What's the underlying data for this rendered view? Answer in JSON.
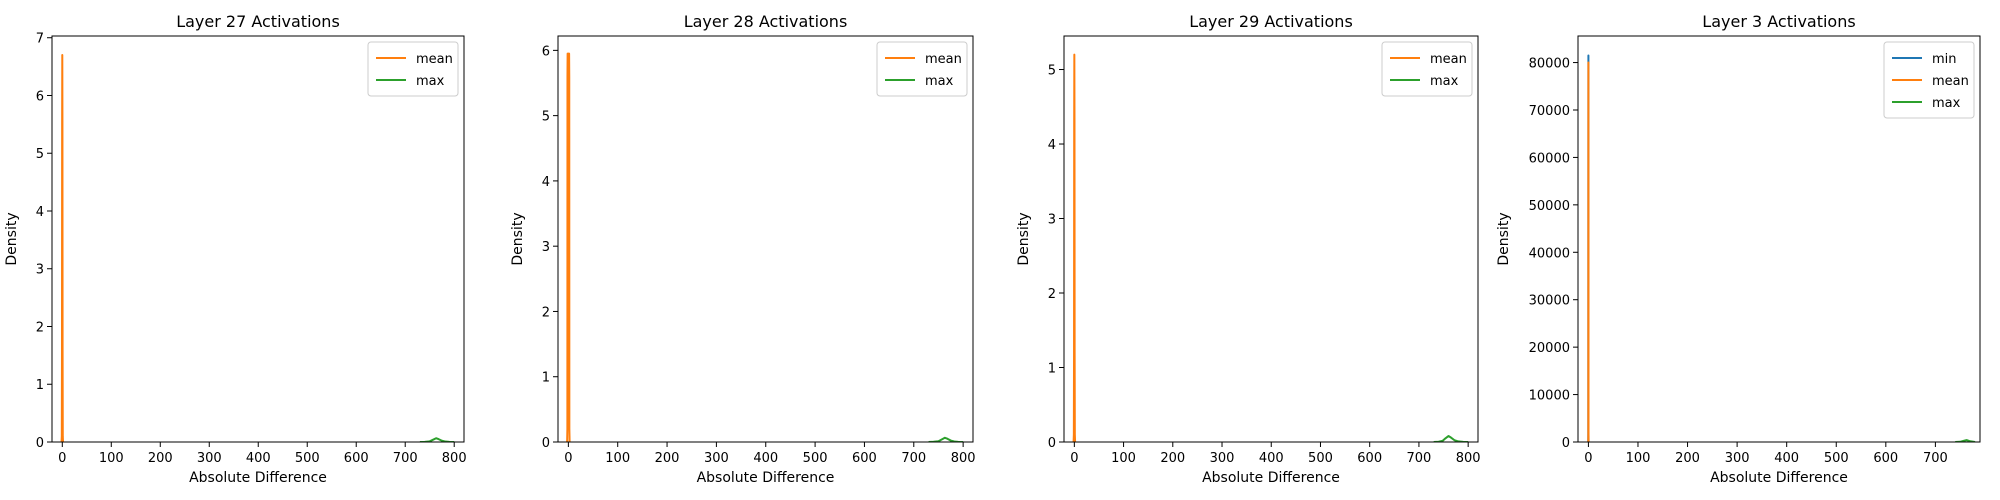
{
  "figure": {
    "background": "#ffffff",
    "layout": "1 row x 4 columns"
  },
  "chart_data": [
    {
      "type": "line",
      "title": "Layer 27 Activations",
      "xlabel": "Absolute Difference",
      "ylabel": "Density",
      "xlim": [
        -21,
        820
      ],
      "ylim": [
        0,
        7.03
      ],
      "xticks": [
        0,
        100,
        200,
        300,
        400,
        500,
        600,
        700,
        800
      ],
      "yticks": [
        0,
        1,
        2,
        3,
        4,
        5,
        6,
        7
      ],
      "grid": false,
      "legend_position": "top-right",
      "series": [
        {
          "name": "mean",
          "color": "#ff7f0e",
          "x": [
            -1.5,
            -1,
            -0.6,
            -0.3,
            0,
            0.3,
            0.6,
            1,
            1.5
          ],
          "y": [
            0,
            0.1,
            1.6,
            5.5,
            6.7,
            5.5,
            1.6,
            0.1,
            0
          ]
        },
        {
          "name": "max",
          "color": "#2ca02c",
          "x": [
            730,
            740,
            750,
            757,
            763,
            768,
            775,
            782,
            790,
            800
          ],
          "y": [
            0,
            0.003,
            0.012,
            0.04,
            0.065,
            0.05,
            0.022,
            0.008,
            0.002,
            0
          ]
        }
      ]
    },
    {
      "type": "line",
      "title": "Layer 28 Activations",
      "xlabel": "Absolute Difference",
      "ylabel": "Density",
      "xlim": [
        -21,
        820
      ],
      "ylim": [
        0,
        6.22
      ],
      "xticks": [
        0,
        100,
        200,
        300,
        400,
        500,
        600,
        700,
        800
      ],
      "yticks": [
        0,
        1,
        2,
        3,
        4,
        5,
        6
      ],
      "grid": false,
      "legend_position": "top-right",
      "series": [
        {
          "name": "mean",
          "color": "#ff7f0e",
          "x": [
            -2.5,
            -2,
            -1.8,
            -1.5,
            0,
            1.5,
            1.8,
            2,
            2.5
          ],
          "y": [
            0,
            0.2,
            5.6,
            5.95,
            5.95,
            5.95,
            5.6,
            0.2,
            0
          ]
        },
        {
          "name": "max",
          "color": "#2ca02c",
          "x": [
            730,
            740,
            750,
            757,
            763,
            768,
            775,
            782,
            790,
            800
          ],
          "y": [
            0,
            0.003,
            0.012,
            0.04,
            0.065,
            0.05,
            0.022,
            0.008,
            0.002,
            0
          ]
        }
      ]
    },
    {
      "type": "line",
      "title": "Layer 29 Activations",
      "xlabel": "Absolute Difference",
      "ylabel": "Density",
      "xlim": [
        -21,
        820
      ],
      "ylim": [
        0,
        5.45
      ],
      "xticks": [
        0,
        100,
        200,
        300,
        400,
        500,
        600,
        700,
        800
      ],
      "yticks": [
        0,
        1,
        2,
        3,
        4,
        5
      ],
      "grid": false,
      "legend_position": "top-right",
      "series": [
        {
          "name": "mean",
          "color": "#ff7f0e",
          "x": [
            -1.5,
            -1,
            -0.6,
            -0.3,
            0,
            0.3,
            0.6,
            1,
            1.5
          ],
          "y": [
            0,
            0.1,
            1.2,
            4.3,
            5.2,
            4.3,
            1.2,
            0.1,
            0
          ]
        },
        {
          "name": "max",
          "color": "#2ca02c",
          "x": [
            730,
            740,
            748,
            754,
            760,
            765,
            772,
            780,
            790,
            800
          ],
          "y": [
            0,
            0.003,
            0.015,
            0.05,
            0.08,
            0.06,
            0.025,
            0.008,
            0.002,
            0
          ]
        }
      ]
    },
    {
      "type": "line",
      "title": "Layer 3 Activations",
      "xlabel": "Absolute Difference",
      "ylabel": "Density",
      "xlim": [
        -21,
        790
      ],
      "ylim": [
        0,
        85600
      ],
      "xticks": [
        0,
        100,
        200,
        300,
        400,
        500,
        600,
        700
      ],
      "yticks": [
        0,
        10000,
        20000,
        30000,
        40000,
        50000,
        60000,
        70000,
        80000
      ],
      "grid": false,
      "legend_position": "top-right",
      "series": [
        {
          "name": "min",
          "color": "#1f77b4",
          "x": [
            -0.3,
            -0.2,
            -0.1,
            0,
            0.1,
            0.2,
            0.3
          ],
          "y": [
            0,
            2000,
            60000,
            81500,
            60000,
            2000,
            0
          ]
        },
        {
          "name": "mean",
          "color": "#ff7f0e",
          "x": [
            -0.3,
            -0.2,
            -0.1,
            0,
            0.1,
            0.2,
            0.3
          ],
          "y": [
            0,
            1500,
            55000,
            80000,
            55000,
            1500,
            0
          ]
        },
        {
          "name": "max",
          "color": "#2ca02c",
          "x": [
            740,
            750,
            757,
            763,
            770,
            780
          ],
          "y": [
            0,
            40,
            250,
            400,
            150,
            0
          ]
        }
      ]
    }
  ]
}
